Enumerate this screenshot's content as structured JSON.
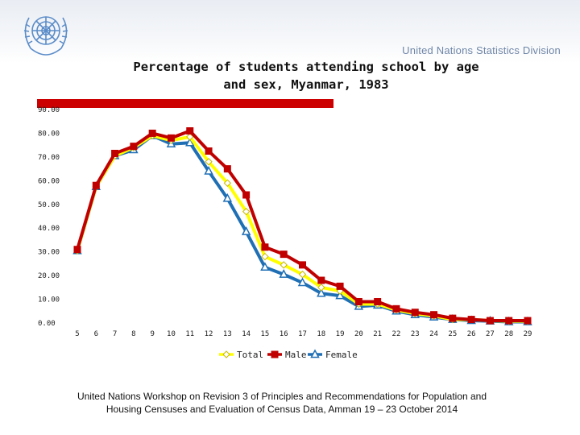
{
  "header": {
    "organization": "United Nations Statistics Division",
    "logo_icon": "un-emblem-icon"
  },
  "chart_data": {
    "type": "line",
    "title": "Percentage of students attending school by age and sex, Myanmar, 1983",
    "title_lines": [
      "Percentage of students attending school by age",
      "and sex, Myanmar, 1983"
    ],
    "xlabel": "",
    "ylabel": "",
    "ylim": [
      0,
      90
    ],
    "y_ticks": [
      "0.00",
      "10.00",
      "20.00",
      "30.00",
      "40.00",
      "50.00",
      "60.00",
      "70.00",
      "80.00",
      "90.00"
    ],
    "categories": [
      "5",
      "6",
      "7",
      "8",
      "9",
      "10",
      "11",
      "12",
      "13",
      "14",
      "15",
      "16",
      "17",
      "18",
      "19",
      "20",
      "21",
      "22",
      "23",
      "24",
      "25",
      "26",
      "27",
      "28",
      "29"
    ],
    "series": [
      {
        "name": "Total",
        "color": "#ffff00",
        "marker": "diamond",
        "values": [
          30.5,
          57.5,
          70.5,
          74,
          79,
          77,
          78.5,
          68,
          59,
          47,
          28,
          24.5,
          20.5,
          15,
          13.5,
          8,
          8,
          5.5,
          4,
          3,
          1.5,
          1.5,
          1,
          0.8,
          0.8
        ]
      },
      {
        "name": "Male",
        "color": "#c00000",
        "marker": "square",
        "values": [
          31,
          58,
          71.5,
          74.5,
          80,
          78,
          81,
          72.5,
          65,
          54,
          32,
          29,
          24.5,
          18,
          15.5,
          9,
          9,
          6,
          4.5,
          3.5,
          2,
          1.5,
          1,
          1,
          1
        ]
      },
      {
        "name": "Female",
        "color": "#1f6fb5",
        "marker": "triangle",
        "values": [
          30.5,
          57.5,
          70.5,
          73,
          79,
          75.5,
          76,
          64,
          52.5,
          38.5,
          23.5,
          20.5,
          17,
          12.5,
          11.5,
          7,
          7.5,
          5,
          3.5,
          2.5,
          1.5,
          1,
          0.8,
          0.5,
          0.5
        ]
      }
    ],
    "legend": {
      "placement": "bottom-center",
      "entries": [
        "Total",
        "Male",
        "Female"
      ]
    },
    "grid": false
  },
  "decor": {
    "accent_bar_color": "#cc0000"
  },
  "footer": {
    "line1": "United Nations Workshop on  Revision 3 of Principles and Recommendations for Population and",
    "line2": "Housing Censuses and Evaluation of Census Data, Amman 19 – 23 October 2014"
  }
}
